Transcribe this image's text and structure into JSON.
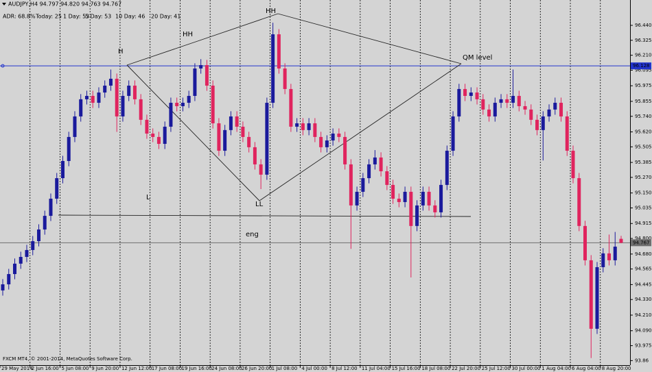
{
  "chart_data": {
    "type": "candlestick",
    "title": "AUDJPY,H4  94.797 94.820 94.763 94.767",
    "adr": [
      "ADR: 68.8%",
      "Today: 25",
      "1 Day: 53",
      "5 Day: 53",
      "10 Day: 46",
      "20 Day: 41"
    ],
    "footer": "FXCM MT4, © 2001-2014, MetaQuotes Software Corp.",
    "annotations": [
      "H",
      "HH",
      "HH",
      "L",
      "LL",
      "QM level",
      "eng"
    ],
    "up_color": "#1a1a9c",
    "down_color": "#e0245e",
    "grid": true,
    "ylim": [
      93.825,
      96.635
    ],
    "yticks": [
      {
        "value": 96.44,
        "label": "96.440"
      },
      96.325,
      {
        "value": 96.21,
        "label": "96.210"
      },
      96.095,
      95.975,
      95.855,
      {
        "value": 95.74,
        "label": "95.740"
      },
      {
        "value": 95.62,
        "label": "95.620"
      },
      95.505,
      95.385,
      {
        "value": 95.27,
        "label": "95.270"
      },
      {
        "value": 95.15,
        "label": "95.150"
      },
      95.035,
      94.915,
      {
        "value": 94.8,
        "label": "94.800"
      },
      {
        "value": 94.68,
        "label": "94.680"
      },
      94.565,
      94.445,
      {
        "value": 94.33,
        "label": "94.330"
      },
      {
        "value": 94.21,
        "label": "94.210"
      },
      {
        "value": 94.09,
        "label": "94.090"
      },
      93.975,
      93.86
    ],
    "hlines": [
      {
        "value": 96.128,
        "color": "#2233cc"
      },
      {
        "value": 94.767,
        "color": "#6e6e6e"
      }
    ],
    "categories": [
      "29 May 2014",
      null,
      null,
      null,
      null,
      "2 Jun 16:00",
      null,
      null,
      null,
      null,
      "5 Jun 08:00",
      null,
      null,
      null,
      null,
      "9 Jun 20:00",
      null,
      null,
      null,
      null,
      "12 Jun 12:00",
      null,
      null,
      null,
      null,
      "17 Jun 08:00",
      null,
      null,
      null,
      null,
      "19 Jun 16:00",
      null,
      null,
      null,
      null,
      "24 Jun 08:00",
      null,
      null,
      null,
      null,
      "26 Jun 20:00",
      null,
      null,
      null,
      null,
      "1 Jul 08:00",
      null,
      null,
      null,
      null,
      "4 Jul 00:00",
      null,
      null,
      null,
      null,
      "8 Jul 12:00",
      null,
      null,
      null,
      null,
      "11 Jul 04:00",
      null,
      null,
      null,
      null,
      "15 Jul 16:00",
      null,
      null,
      null,
      null,
      "18 Jul 08:00",
      null,
      null,
      null,
      null,
      "22 Jul 20:00",
      null,
      null,
      null,
      null,
      "25 Jul 12:00",
      null,
      null,
      null,
      null,
      "30 Jul 00:00",
      null,
      null,
      null,
      null,
      "1 Aug 04:00",
      null,
      null,
      null,
      null,
      "6 Aug 04:00",
      null,
      null,
      null,
      null,
      "8 Aug 20:00",
      null,
      null,
      null
    ],
    "open": [
      94.4,
      94.447,
      94.526,
      94.606,
      94.658,
      94.711,
      94.779,
      94.869,
      94.974,
      95.106,
      95.264,
      95.396,
      95.581,
      95.739,
      95.871,
      95.897,
      95.844,
      95.923,
      95.976,
      96.029,
      95.739,
      95.897,
      95.976,
      95.871,
      95.713,
      95.607,
      95.581,
      95.528,
      95.66,
      95.844,
      95.818,
      95.844,
      95.897,
      96.108,
      96.134,
      95.976,
      95.686,
      95.475,
      95.634,
      95.739,
      95.66,
      95.581,
      95.502,
      95.37,
      95.291,
      95.844,
      96.371,
      96.108,
      95.95,
      95.66,
      95.686,
      95.634,
      95.686,
      95.581,
      95.502,
      95.554,
      95.607,
      95.581,
      95.37,
      95.054,
      95.159,
      95.264,
      95.37,
      95.423,
      95.317,
      95.212,
      95.106,
      95.08,
      95.159,
      94.896,
      95.054,
      95.159,
      95.054,
      95.001,
      95.212,
      95.475,
      95.739,
      95.95,
      95.897,
      95.923,
      95.871,
      95.792,
      95.739,
      95.844,
      95.871,
      95.844,
      95.897,
      95.818,
      95.792,
      95.713,
      95.634,
      95.739,
      95.792,
      95.844,
      95.739,
      95.475,
      95.264,
      94.896,
      94.632,
      94.105,
      94.579,
      94.685,
      94.632,
      94.797
    ],
    "high": [
      94.487,
      94.566,
      94.646,
      94.698,
      94.751,
      94.819,
      94.909,
      95.014,
      95.146,
      95.304,
      95.436,
      95.621,
      95.779,
      95.911,
      95.937,
      95.937,
      95.963,
      96.016,
      96.1,
      96.069,
      95.937,
      96.016,
      96.016,
      95.911,
      95.753,
      95.647,
      95.621,
      95.7,
      95.884,
      95.884,
      95.884,
      95.937,
      96.148,
      96.18,
      96.174,
      96.016,
      95.726,
      95.674,
      95.779,
      95.779,
      95.7,
      95.621,
      95.542,
      95.41,
      95.884,
      96.46,
      96.411,
      96.148,
      95.99,
      95.726,
      95.726,
      95.726,
      95.726,
      95.621,
      95.594,
      95.647,
      95.647,
      95.621,
      95.41,
      95.199,
      95.304,
      95.41,
      95.48,
      95.463,
      95.357,
      95.252,
      95.146,
      95.199,
      95.199,
      95.094,
      95.199,
      95.199,
      95.094,
      95.252,
      95.515,
      95.779,
      95.99,
      95.99,
      95.963,
      95.963,
      95.911,
      95.832,
      95.884,
      95.911,
      95.911,
      96.1,
      95.937,
      95.858,
      95.832,
      95.753,
      95.779,
      95.832,
      95.884,
      95.884,
      95.779,
      95.515,
      95.304,
      94.936,
      94.672,
      94.619,
      94.725,
      94.83,
      94.85,
      94.82
    ],
    "low": [
      94.36,
      94.407,
      94.486,
      94.566,
      94.618,
      94.671,
      94.739,
      94.829,
      94.934,
      95.066,
      95.224,
      95.356,
      95.541,
      95.699,
      95.831,
      95.804,
      95.804,
      95.883,
      95.936,
      95.62,
      95.699,
      95.857,
      95.831,
      95.673,
      95.567,
      95.541,
      95.488,
      95.488,
      95.62,
      95.778,
      95.778,
      95.804,
      95.857,
      96.068,
      95.936,
      95.646,
      95.435,
      95.435,
      95.594,
      95.62,
      95.541,
      95.462,
      95.33,
      95.18,
      95.251,
      95.804,
      96.068,
      95.91,
      95.62,
      95.62,
      95.594,
      95.594,
      95.541,
      95.462,
      95.462,
      95.514,
      95.541,
      95.33,
      94.72,
      95.014,
      95.119,
      95.224,
      95.33,
      95.277,
      95.172,
      95.066,
      95.04,
      95.04,
      94.5,
      94.856,
      95.014,
      95.014,
      94.961,
      94.961,
      95.172,
      95.435,
      95.699,
      95.857,
      95.857,
      95.831,
      95.752,
      95.699,
      95.699,
      95.804,
      95.804,
      95.804,
      95.778,
      95.752,
      95.673,
      95.594,
      95.4,
      95.699,
      95.752,
      95.699,
      95.435,
      95.224,
      94.856,
      94.592,
      93.88,
      94.065,
      94.539,
      94.592,
      94.592,
      94.763
    ],
    "close": [
      94.447,
      94.526,
      94.606,
      94.658,
      94.711,
      94.779,
      94.869,
      94.974,
      95.106,
      95.264,
      95.396,
      95.581,
      95.739,
      95.871,
      95.897,
      95.844,
      95.923,
      95.976,
      96.029,
      95.739,
      95.897,
      95.976,
      95.871,
      95.713,
      95.607,
      95.581,
      95.528,
      95.66,
      95.844,
      95.818,
      95.844,
      95.897,
      96.108,
      96.134,
      95.976,
      95.686,
      95.475,
      95.634,
      95.739,
      95.66,
      95.581,
      95.502,
      95.37,
      95.291,
      95.844,
      96.371,
      96.108,
      95.95,
      95.66,
      95.686,
      95.634,
      95.686,
      95.581,
      95.502,
      95.554,
      95.607,
      95.581,
      95.37,
      95.054,
      95.159,
      95.264,
      95.37,
      95.423,
      95.317,
      95.212,
      95.106,
      95.08,
      95.159,
      94.896,
      95.054,
      95.159,
      95.054,
      95.001,
      95.212,
      95.475,
      95.739,
      95.95,
      95.897,
      95.923,
      95.871,
      95.792,
      95.739,
      95.844,
      95.871,
      95.844,
      95.897,
      95.818,
      95.792,
      95.713,
      95.634,
      95.739,
      95.792,
      95.844,
      95.739,
      95.475,
      95.264,
      94.896,
      94.632,
      94.105,
      94.579,
      94.685,
      94.632,
      94.737,
      94.767
    ]
  }
}
